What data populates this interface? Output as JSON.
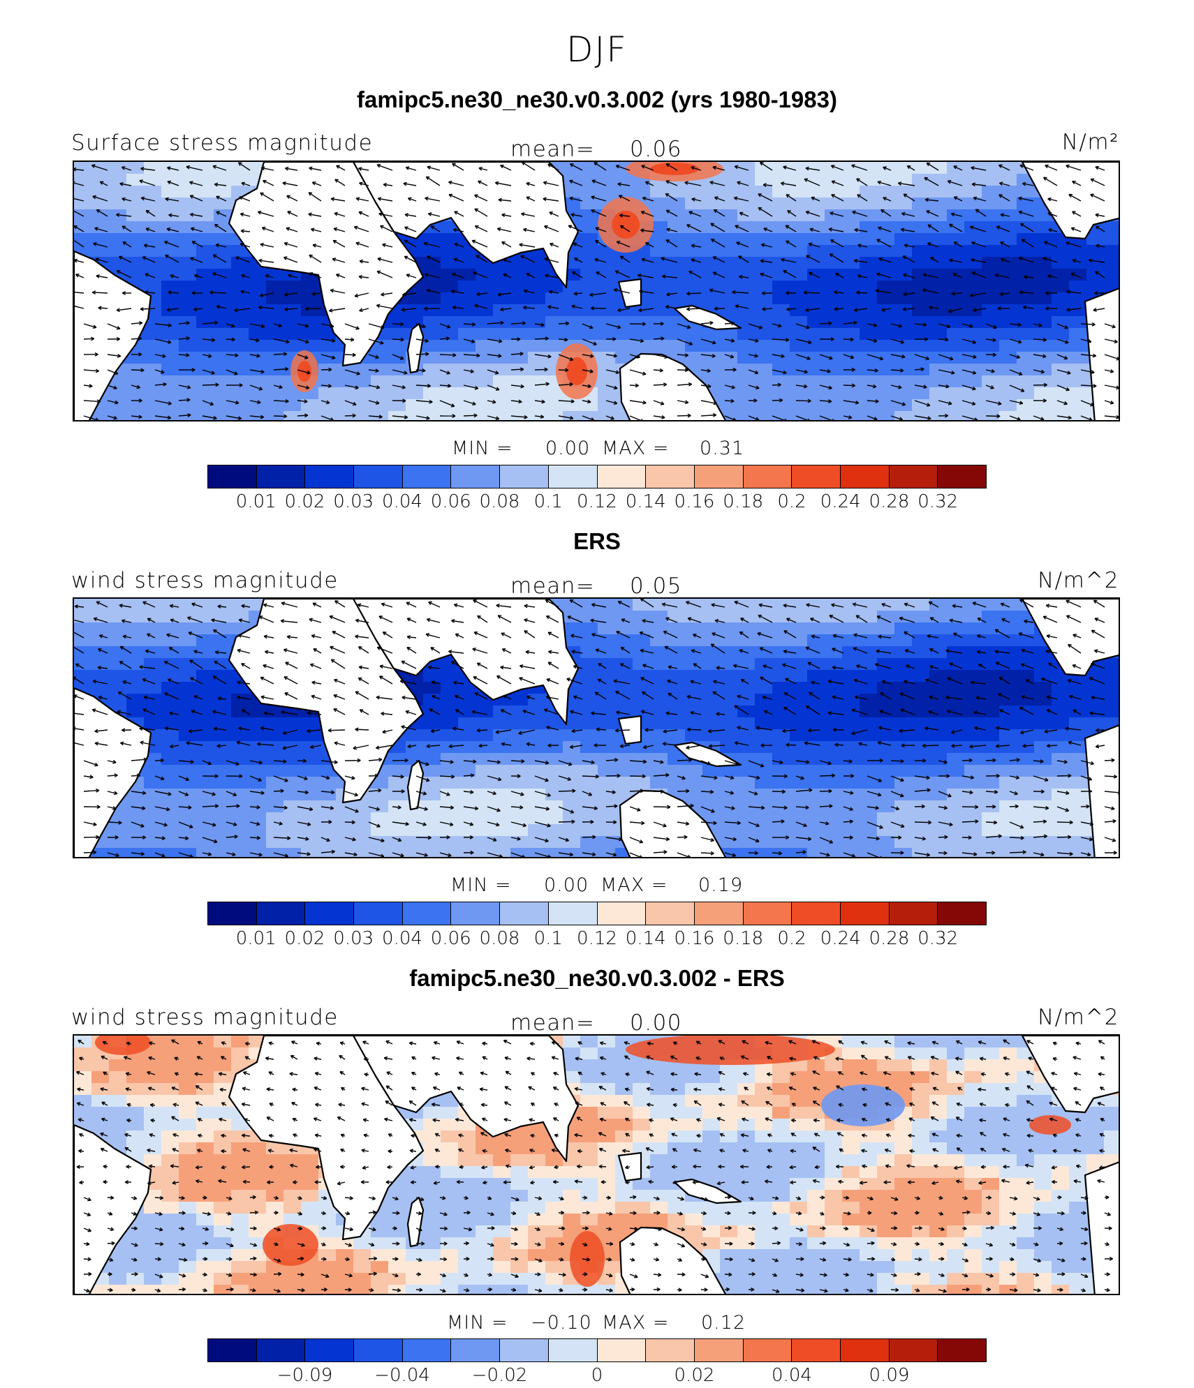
{
  "figure": {
    "title": "DJF"
  },
  "panels": [
    {
      "id": "model",
      "title": "famipc5.ne30_ne30.v0.3.002 (yrs 1980-1983)",
      "variable": "Surface stress magnitude",
      "mean_label": "mean=",
      "mean_value": "0.06",
      "units": "N/m²",
      "min_label": "MIN =",
      "min_value": "0.00",
      "max_label": "MAX =",
      "max_value": "0.31",
      "field_type": "magnitude",
      "colorbar_ticks": [
        "0.01",
        "0.02",
        "0.03",
        "0.04",
        "0.06",
        "0.08",
        "0.1",
        "0.12",
        "0.14",
        "0.16",
        "0.18",
        "0.2",
        "0.24",
        "0.28",
        "0.32"
      ]
    },
    {
      "id": "obs",
      "title": "ERS",
      "variable": "wind stress magnitude",
      "mean_label": "mean=",
      "mean_value": "0.05",
      "units": "N/m^2",
      "min_label": "MIN =",
      "min_value": "0.00",
      "max_label": "MAX =",
      "max_value": "0.19",
      "field_type": "magnitude",
      "colorbar_ticks": [
        "0.01",
        "0.02",
        "0.03",
        "0.04",
        "0.06",
        "0.08",
        "0.1",
        "0.12",
        "0.14",
        "0.16",
        "0.18",
        "0.2",
        "0.24",
        "0.28",
        "0.32"
      ]
    },
    {
      "id": "diff",
      "title": "famipc5.ne30_ne30.v0.3.002 - ERS",
      "variable": "wind stress magnitude",
      "mean_label": "mean=",
      "mean_value": "0.00",
      "units": "N/m^2",
      "min_label": "MIN =",
      "min_value": "−0.10",
      "max_label": "MAX =",
      "max_value": "0.12",
      "field_type": "difference",
      "colorbar_ticks": [
        "−0.09",
        "−0.04",
        "−0.02",
        "0",
        "0.02",
        "0.04",
        "0.09"
      ]
    }
  ],
  "colorbar_colors": [
    "#000c7e",
    "#0021a8",
    "#0435d2",
    "#1e55e6",
    "#3b73f0",
    "#6f98f2",
    "#a6c0f3",
    "#d4e4f6",
    "#fde8d8",
    "#f9c6aa",
    "#f6a07a",
    "#f3764c",
    "#ef4d25",
    "#df300f",
    "#b51e0a",
    "#850806"
  ]
}
